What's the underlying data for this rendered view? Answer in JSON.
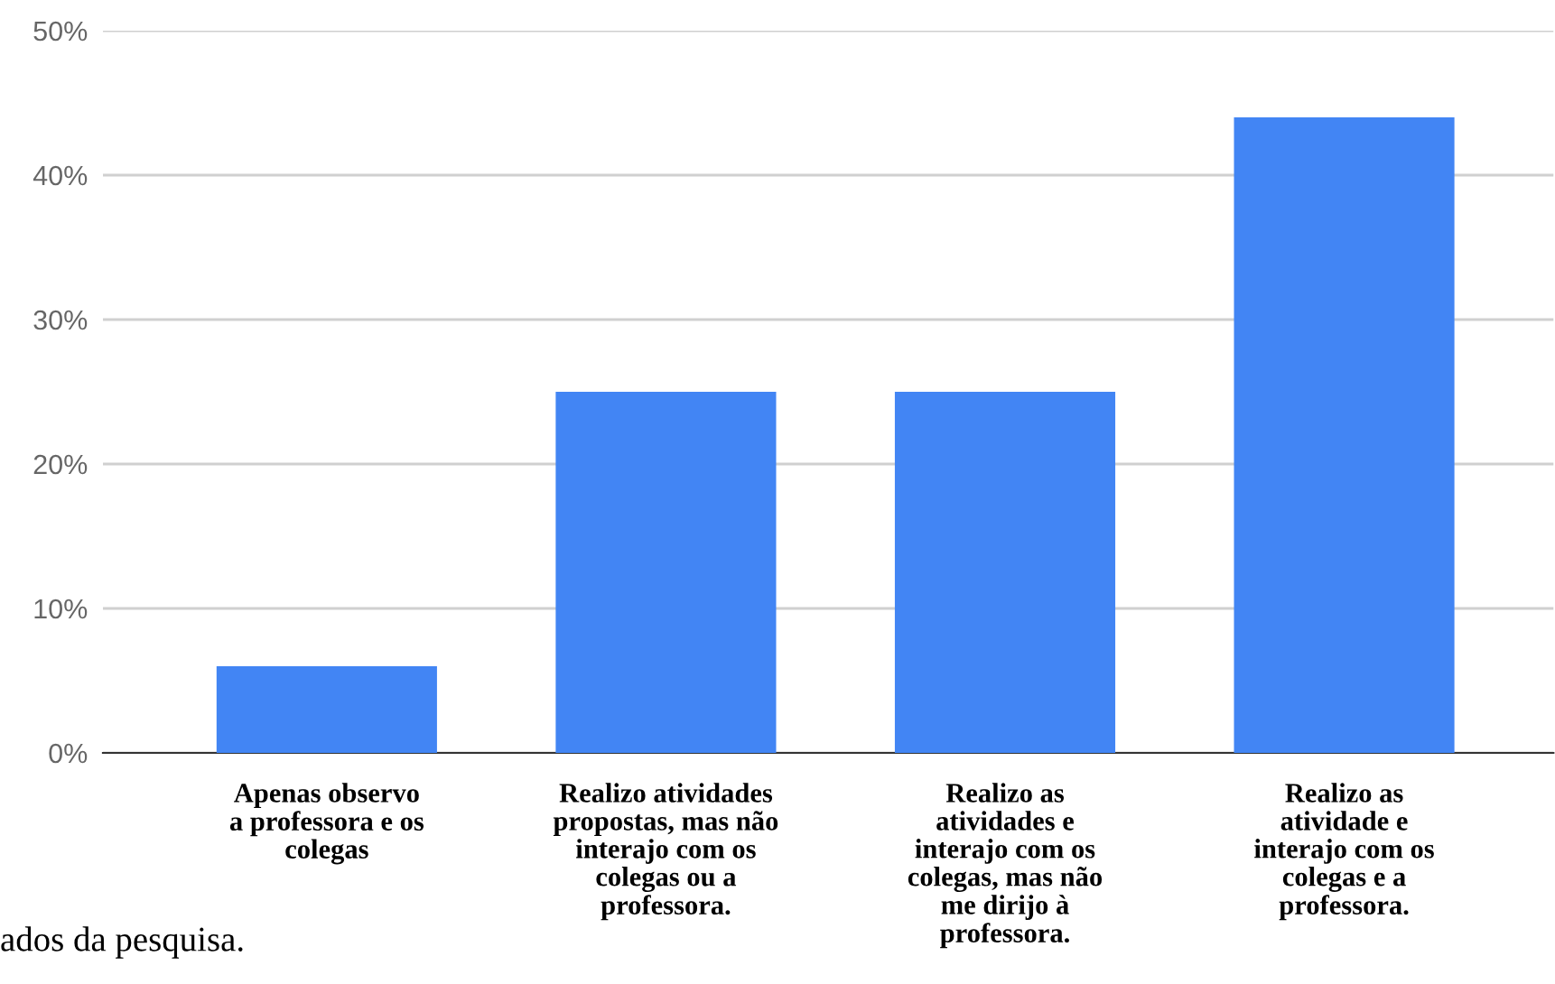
{
  "chart_data": {
    "type": "bar",
    "categories": [
      "Apenas observo\na professora e os\ncolegas",
      "Realizo atividades\npropostas, mas não\ninterajo com os\ncolegas ou a\nprofessora.",
      "Realizo as\natividades e\ninterajo com os\ncolegas, mas não\nme dirijo à\nprofessora.",
      "Realizo as\natividade e\ninterajo com os\ncolegas e a\nprofessora."
    ],
    "values": [
      6,
      25,
      25,
      44
    ],
    "color": "#4285f4",
    "ylim": [
      0,
      50
    ],
    "yticks": [
      {
        "value": 0,
        "label": "0%"
      },
      {
        "value": 10,
        "label": "10%"
      },
      {
        "value": 20,
        "label": "20%"
      },
      {
        "value": 30,
        "label": "30%"
      },
      {
        "value": 40,
        "label": "40%"
      },
      {
        "value": 50,
        "label": "50%"
      }
    ],
    "grid": "y",
    "annotations": [
      "ados da pesquisa."
    ]
  }
}
